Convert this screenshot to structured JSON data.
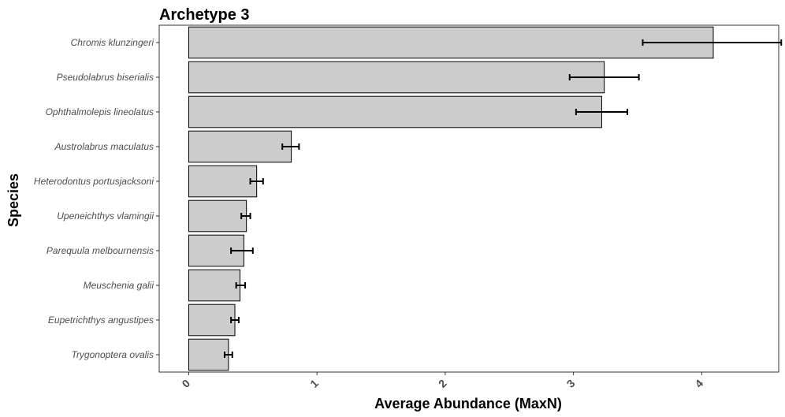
{
  "chart_data": {
    "type": "bar",
    "orientation": "horizontal",
    "title": "Archetype 3",
    "xlabel": "Average Abundance (MaxN)",
    "ylabel": "Species",
    "xlim": [
      -0.23,
      4.6
    ],
    "xticks": [
      "0",
      "1",
      "2",
      "3",
      "4"
    ],
    "grid": false,
    "categories": [
      "Chromis klunzingeri",
      "Pseudolabrus biserialis",
      "Ophthalmolepis lineolatus",
      "Austrolabrus maculatus",
      "Heterodontus portusjacksoni",
      "Upeneichthys vlamingii",
      "Parequula melbournensis",
      "Meuschenia galii",
      "Eupetrichthys angustipes",
      "Trygonoptera ovalis"
    ],
    "values": [
      4.09,
      3.24,
      3.22,
      0.8,
      0.53,
      0.45,
      0.43,
      0.4,
      0.36,
      0.31
    ],
    "error_low": [
      3.54,
      2.97,
      3.02,
      0.73,
      0.48,
      0.41,
      0.33,
      0.37,
      0.33,
      0.28
    ],
    "error_high": [
      4.62,
      3.51,
      3.42,
      0.86,
      0.58,
      0.48,
      0.5,
      0.44,
      0.39,
      0.34
    ],
    "colors": {
      "bar_fill": "#cccccc",
      "bar_stroke": "#000000",
      "error": "#000000"
    }
  }
}
